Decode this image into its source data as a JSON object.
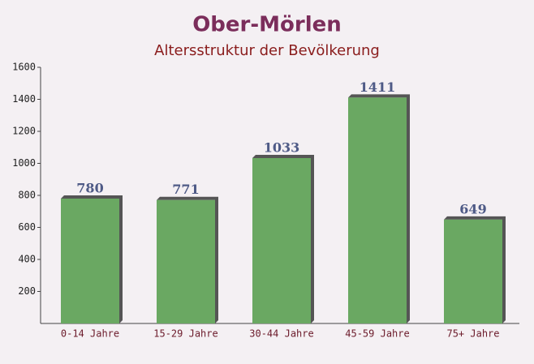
{
  "chart_data": {
    "type": "bar",
    "title": "Ober-Mörlen",
    "subtitle": "Altersstruktur der Bevölkerung",
    "categories": [
      "0-14 Jahre",
      "15-29 Jahre",
      "30-44 Jahre",
      "45-59 Jahre",
      "75+ Jahre"
    ],
    "values": [
      780,
      771,
      1033,
      1411,
      649
    ],
    "color": "#6aa862",
    "ylim": [
      0,
      1600
    ],
    "yticks": [
      200,
      400,
      600,
      800,
      1000,
      1200,
      1400,
      1600
    ],
    "grid": false
  }
}
